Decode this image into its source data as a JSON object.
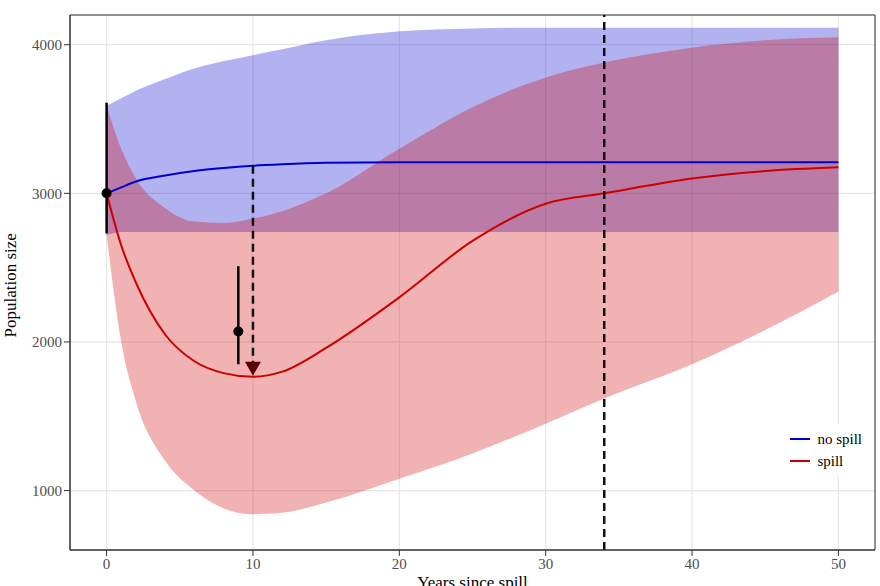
{
  "chart_data": {
    "type": "line",
    "x_label": "Years since spill",
    "y_label": "Population size",
    "xlim": [
      -2.5,
      52.5
    ],
    "xticks": [
      0,
      10,
      20,
      30,
      40,
      50
    ],
    "ylim": [
      600,
      4200
    ],
    "yticks": [
      1000,
      2000,
      3000,
      4000
    ],
    "grid": true,
    "legend": "lower right",
    "x": [
      0,
      1,
      2,
      4,
      6,
      8,
      10,
      12,
      15,
      20,
      25,
      30,
      34,
      40,
      45,
      50
    ],
    "series": [
      {
        "name": "no spill",
        "color": "#0000cc",
        "values": [
          3000,
          3040,
          3080,
          3120,
          3150,
          3170,
          3185,
          3195,
          3205,
          3210,
          3210,
          3210,
          3210,
          3210,
          3210,
          3210
        ],
        "lower": [
          2720,
          2740,
          2740,
          2740,
          2740,
          2740,
          2740,
          2740,
          2740,
          2740,
          2740,
          2740,
          2740,
          2740,
          2740,
          2740
        ],
        "upper": [
          3590,
          3640,
          3690,
          3770,
          3840,
          3890,
          3930,
          3970,
          4030,
          4090,
          4110,
          4115,
          4115,
          4115,
          4115,
          4115
        ]
      },
      {
        "name": "spill",
        "color": "#cc0000",
        "values": [
          3000,
          2650,
          2400,
          2050,
          1870,
          1790,
          1765,
          1800,
          1960,
          2300,
          2680,
          2930,
          3000,
          3100,
          3150,
          3175
        ],
        "lower": [
          2720,
          2000,
          1600,
          1200,
          1000,
          880,
          840,
          850,
          920,
          1080,
          1250,
          1450,
          1620,
          1850,
          2080,
          2340
        ],
        "upper": [
          3590,
          3300,
          3100,
          2900,
          2810,
          2800,
          2830,
          2880,
          3000,
          3300,
          3580,
          3780,
          3880,
          3980,
          4030,
          4050
        ]
      }
    ],
    "observations": [
      {
        "x": 0,
        "y": 3000,
        "lower": 2730,
        "upper": 3610
      },
      {
        "x": 9,
        "y": 2070,
        "lower": 1850,
        "upper": 2510
      }
    ],
    "highlight": {
      "x": 10,
      "y": 1820,
      "marker": "triangle-down",
      "color": "#5a0000"
    },
    "vlines": [
      {
        "x": 10,
        "y_from": 1820,
        "y_to": 3185,
        "line_style": "dashed"
      },
      {
        "x": 34,
        "line_style": "dashed"
      }
    ]
  }
}
